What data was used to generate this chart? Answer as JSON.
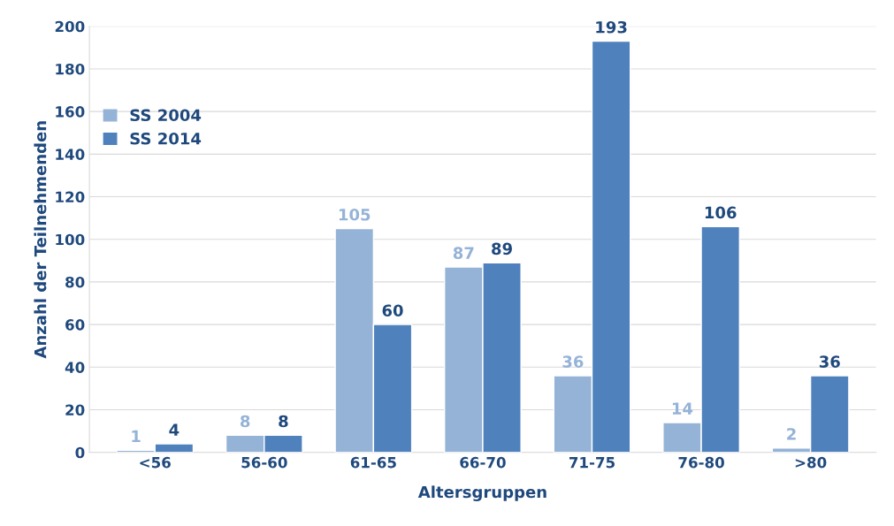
{
  "chart_data": {
    "type": "bar",
    "xlabel": "Altersgruppen",
    "ylabel": "Anzahl der Teilnehmenden",
    "categories": [
      "<56",
      "56-60",
      "61-65",
      "66-70",
      "71-75",
      "76-80",
      ">80"
    ],
    "series": [
      {
        "name": "SS 2004",
        "color": "#95b3d7",
        "values": [
          1,
          8,
          105,
          87,
          36,
          14,
          2
        ]
      },
      {
        "name": "SS 2014",
        "color": "#4f81bd",
        "values": [
          4,
          8,
          60,
          89,
          193,
          106,
          36
        ]
      }
    ],
    "ylim": [
      0,
      200
    ],
    "yticks": [
      0,
      20,
      40,
      60,
      80,
      100,
      120,
      140,
      160,
      180,
      200
    ],
    "grid": "y",
    "legend": "top left",
    "data_labels": true
  }
}
